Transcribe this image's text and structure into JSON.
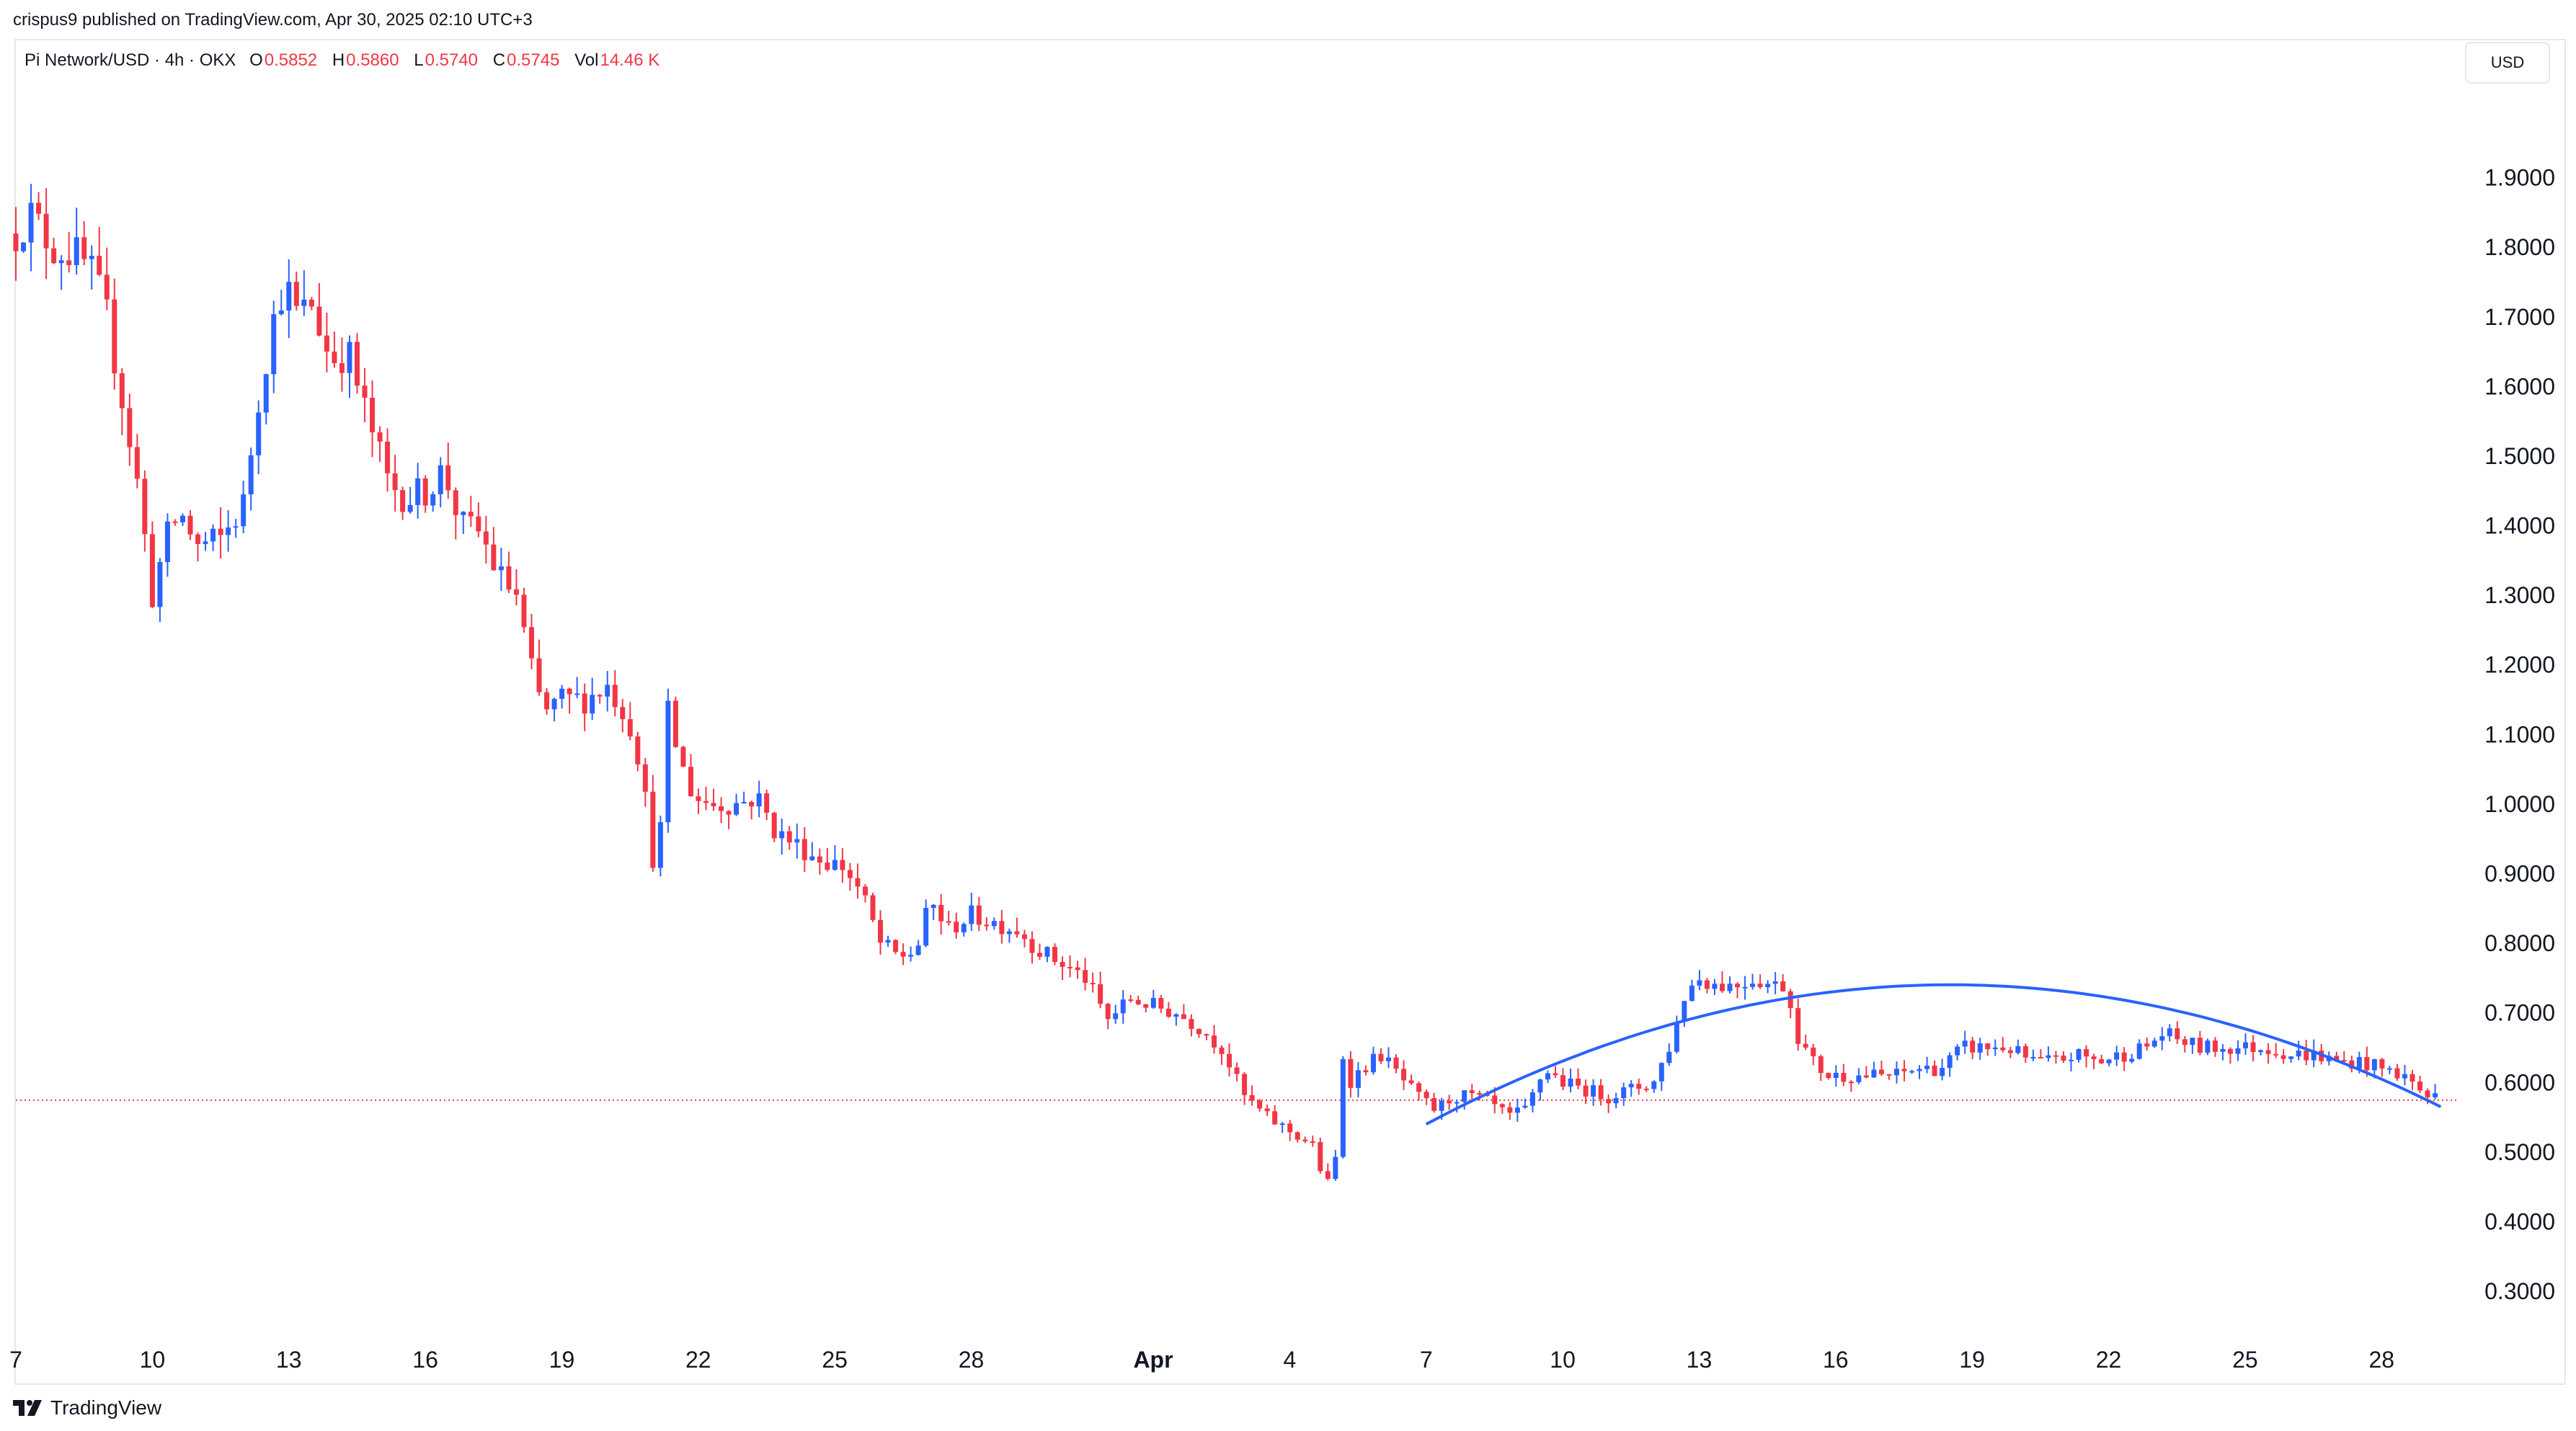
{
  "header": {
    "publisher": "crispus9 published on TradingView.com, Apr 30, 2025 02:10 UTC+3"
  },
  "legend": {
    "symbol": "Pi Network/USD · 4h · OKX",
    "open_label": "O",
    "open": "0.5852",
    "high_label": "H",
    "high": "0.5860",
    "low_label": "L",
    "low": "0.5740",
    "close_label": "C",
    "close": "0.5745",
    "vol_label": "Vol",
    "vol": "14.46 K"
  },
  "currency": "USD",
  "footer": {
    "brand": "TradingView"
  },
  "colors": {
    "up": "#2962ff",
    "down": "#f23645",
    "curve": "#2962ff",
    "price_line": "#f23645",
    "text": "#131722"
  },
  "chart_data": {
    "type": "candlestick",
    "title": "Pi Network/USD · 4h · OKX",
    "y_axis_position": "right",
    "ylim": [
      0.24,
      2.0
    ],
    "yticks": [
      0.3,
      0.4,
      0.5,
      0.6,
      0.7,
      0.8,
      0.9,
      1.0,
      1.1,
      1.2,
      1.3,
      1.4,
      1.5,
      1.6,
      1.7,
      1.8,
      1.9
    ],
    "ytick_labels": [
      "0.3000",
      "0.4000",
      "0.5000",
      "0.6000",
      "0.7000",
      "0.8000",
      "0.9000",
      "1.0000",
      "1.1000",
      "1.2000",
      "1.3000",
      "1.4000",
      "1.5000",
      "1.6000",
      "1.7000",
      "1.8000",
      "1.9000"
    ],
    "xlim": [
      7.0,
      60.45
    ],
    "xticks": [
      {
        "day": 7,
        "label": "7",
        "bold": false
      },
      {
        "day": 10,
        "label": "10",
        "bold": false
      },
      {
        "day": 13,
        "label": "13",
        "bold": false
      },
      {
        "day": 16,
        "label": "16",
        "bold": false
      },
      {
        "day": 19,
        "label": "19",
        "bold": false
      },
      {
        "day": 22,
        "label": "22",
        "bold": false
      },
      {
        "day": 25,
        "label": "25",
        "bold": false
      },
      {
        "day": 28,
        "label": "28",
        "bold": false
      },
      {
        "day": 32,
        "label": "Apr",
        "bold": true
      },
      {
        "day": 35,
        "label": "4",
        "bold": false
      },
      {
        "day": 38,
        "label": "7",
        "bold": false
      },
      {
        "day": 41,
        "label": "10",
        "bold": false
      },
      {
        "day": 44,
        "label": "13",
        "bold": false
      },
      {
        "day": 47,
        "label": "16",
        "bold": false
      },
      {
        "day": 50,
        "label": "19",
        "bold": false
      },
      {
        "day": 53,
        "label": "22",
        "bold": false
      },
      {
        "day": 56,
        "label": "25",
        "bold": false
      },
      {
        "day": 59,
        "label": "28",
        "bold": false
      }
    ],
    "candle_interval_days": 0.1667,
    "price_anchors": [
      [
        7.0,
        1.82
      ],
      [
        7.3,
        1.85
      ],
      [
        7.8,
        1.8
      ],
      [
        8.3,
        1.79
      ],
      [
        8.7,
        1.76
      ],
      [
        9.0,
        1.7
      ],
      [
        9.4,
        1.56
      ],
      [
        9.7,
        1.45
      ],
      [
        9.9,
        1.35
      ],
      [
        10.0,
        1.3
      ],
      [
        10.3,
        1.38
      ],
      [
        10.6,
        1.42
      ],
      [
        11.0,
        1.37
      ],
      [
        11.5,
        1.38
      ],
      [
        12.0,
        1.43
      ],
      [
        12.3,
        1.57
      ],
      [
        12.6,
        1.68
      ],
      [
        12.9,
        1.75
      ],
      [
        13.2,
        1.7
      ],
      [
        13.5,
        1.72
      ],
      [
        13.9,
        1.64
      ],
      [
        14.3,
        1.65
      ],
      [
        14.6,
        1.58
      ],
      [
        14.9,
        1.52
      ],
      [
        15.2,
        1.46
      ],
      [
        15.6,
        1.44
      ],
      [
        16.0,
        1.45
      ],
      [
        16.4,
        1.48
      ],
      [
        16.8,
        1.4
      ],
      [
        17.2,
        1.39
      ],
      [
        17.6,
        1.33
      ],
      [
        18.0,
        1.3
      ],
      [
        18.3,
        1.2
      ],
      [
        18.6,
        1.13
      ],
      [
        19.0,
        1.15
      ],
      [
        19.5,
        1.15
      ],
      [
        20.0,
        1.17
      ],
      [
        20.3,
        1.14
      ],
      [
        20.6,
        1.1
      ],
      [
        20.9,
        0.98
      ],
      [
        21.1,
        0.87
      ],
      [
        21.3,
        1.14
      ],
      [
        21.6,
        1.06
      ],
      [
        21.9,
        1.01
      ],
      [
        22.3,
        1.0
      ],
      [
        22.8,
        1.0
      ],
      [
        23.3,
        1.01
      ],
      [
        23.7,
        0.96
      ],
      [
        24.2,
        0.94
      ],
      [
        24.7,
        0.92
      ],
      [
        25.2,
        0.91
      ],
      [
        25.6,
        0.87
      ],
      [
        26.0,
        0.8
      ],
      [
        26.4,
        0.78
      ],
      [
        26.8,
        0.79
      ],
      [
        27.1,
        0.86
      ],
      [
        27.5,
        0.82
      ],
      [
        28.0,
        0.84
      ],
      [
        28.5,
        0.83
      ],
      [
        29.0,
        0.82
      ],
      [
        29.5,
        0.79
      ],
      [
        30.0,
        0.77
      ],
      [
        30.5,
        0.75
      ],
      [
        31.0,
        0.69
      ],
      [
        31.5,
        0.72
      ],
      [
        32.0,
        0.71
      ],
      [
        32.5,
        0.7
      ],
      [
        33.0,
        0.68
      ],
      [
        33.5,
        0.65
      ],
      [
        34.0,
        0.58
      ],
      [
        34.5,
        0.55
      ],
      [
        35.0,
        0.53
      ],
      [
        35.5,
        0.51
      ],
      [
        35.8,
        0.45
      ],
      [
        36.0,
        0.48
      ],
      [
        36.1,
        0.66
      ],
      [
        36.3,
        0.6
      ],
      [
        36.6,
        0.62
      ],
      [
        37.0,
        0.64
      ],
      [
        37.4,
        0.61
      ],
      [
        37.8,
        0.58
      ],
      [
        38.2,
        0.56
      ],
      [
        38.6,
        0.58
      ],
      [
        39.0,
        0.58
      ],
      [
        39.4,
        0.57
      ],
      [
        39.8,
        0.55
      ],
      [
        40.2,
        0.56
      ],
      [
        40.6,
        0.62
      ],
      [
        41.0,
        0.6
      ],
      [
        41.5,
        0.59
      ],
      [
        42.0,
        0.58
      ],
      [
        42.5,
        0.59
      ],
      [
        43.0,
        0.6
      ],
      [
        43.4,
        0.66
      ],
      [
        43.7,
        0.73
      ],
      [
        44.0,
        0.75
      ],
      [
        44.4,
        0.74
      ],
      [
        44.8,
        0.74
      ],
      [
        45.2,
        0.75
      ],
      [
        45.6,
        0.74
      ],
      [
        45.9,
        0.74
      ],
      [
        46.2,
        0.66
      ],
      [
        46.5,
        0.63
      ],
      [
        46.8,
        0.61
      ],
      [
        47.3,
        0.61
      ],
      [
        47.8,
        0.61
      ],
      [
        48.3,
        0.61
      ],
      [
        48.8,
        0.62
      ],
      [
        49.3,
        0.62
      ],
      [
        49.8,
        0.65
      ],
      [
        50.3,
        0.65
      ],
      [
        50.8,
        0.65
      ],
      [
        51.3,
        0.63
      ],
      [
        51.8,
        0.63
      ],
      [
        52.3,
        0.64
      ],
      [
        52.8,
        0.63
      ],
      [
        53.3,
        0.64
      ],
      [
        53.8,
        0.65
      ],
      [
        54.2,
        0.67
      ],
      [
        54.6,
        0.66
      ],
      [
        55.0,
        0.65
      ],
      [
        55.5,
        0.65
      ],
      [
        56.0,
        0.65
      ],
      [
        56.5,
        0.65
      ],
      [
        57.0,
        0.64
      ],
      [
        57.5,
        0.64
      ],
      [
        58.0,
        0.63
      ],
      [
        58.5,
        0.63
      ],
      [
        59.0,
        0.62
      ],
      [
        59.5,
        0.61
      ],
      [
        60.0,
        0.58
      ],
      [
        60.3,
        0.58
      ]
    ],
    "last_close": 0.5745,
    "curve_points": [
      [
        38.0,
        0.54
      ],
      [
        50.0,
        0.74
      ],
      [
        60.3,
        0.565
      ]
    ],
    "grid": false,
    "legend_position": "top-left"
  }
}
